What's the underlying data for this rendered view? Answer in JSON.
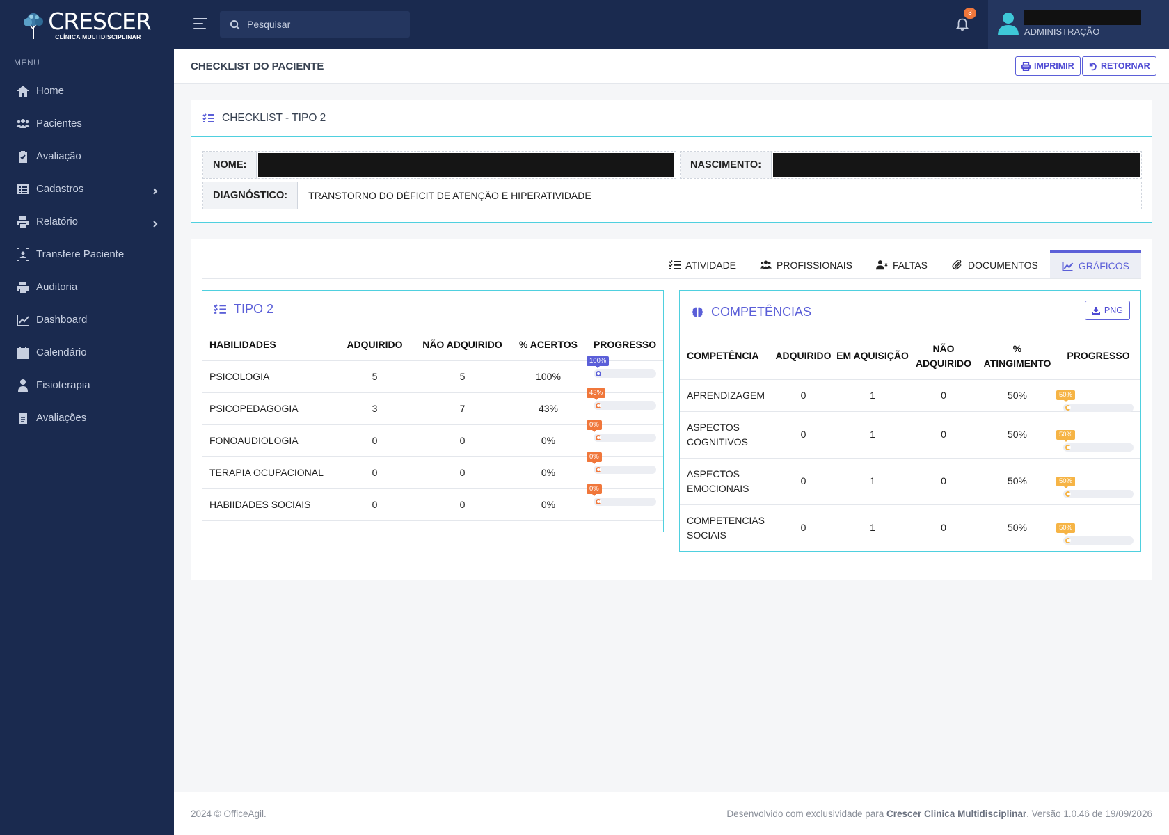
{
  "brand": {
    "name": "CRESCER",
    "subtitle": "CLÍNICA MULTIDISCIPLINAR"
  },
  "sidebar": {
    "menu_title": "MENU",
    "items": [
      {
        "label": "Home"
      },
      {
        "label": "Pacientes"
      },
      {
        "label": "Avaliação"
      },
      {
        "label": "Cadastros"
      },
      {
        "label": "Relatório"
      },
      {
        "label": "Transfere Paciente"
      },
      {
        "label": "Auditoria"
      },
      {
        "label": "Dashboard"
      },
      {
        "label": "Calendário"
      },
      {
        "label": "Fisioterapia"
      },
      {
        "label": "Avaliações"
      }
    ]
  },
  "topbar": {
    "search_placeholder": "Pesquisar",
    "notifications_count": "3",
    "user_role": "ADMINISTRAÇÃO"
  },
  "page": {
    "title": "CHECKLIST DO PACIENTE",
    "print_label": "IMPRIMIR",
    "return_label": "RETORNAR"
  },
  "checklist": {
    "title": "CHECKLIST - TIPO 2",
    "name_label": "NOME:",
    "birth_label": "NASCIMENTO:",
    "diagnosis_label": "DIAGNÓSTICO:",
    "diagnosis_value": "TRANSTORNO DO DÉFICIT DE ATENÇÃO E HIPERATIVIDADE"
  },
  "tabs": [
    {
      "label": "ATIVIDADE"
    },
    {
      "label": "PROFISSIONAIS"
    },
    {
      "label": "FALTAS"
    },
    {
      "label": "DOCUMENTOS"
    },
    {
      "label": "GRÁFICOS"
    }
  ],
  "tipo2": {
    "title": "TIPO 2",
    "headers": [
      "HABILIDADES",
      "ADQUIRIDO",
      "NÃO ADQUIRIDO",
      "% ACERTOS",
      "PROGRESSO"
    ],
    "rows": [
      {
        "skill": "PSICOLOGIA",
        "acquired": "5",
        "not_acquired": "5",
        "pct": "100%",
        "progress_label": "100%",
        "progress": 1.0,
        "color": "#5b5fd8"
      },
      {
        "skill": "PSICOPEDAGOGIA",
        "acquired": "3",
        "not_acquired": "7",
        "pct": "43%",
        "progress_label": "43%",
        "progress": 0.43,
        "color": "#f0773b"
      },
      {
        "skill": "FONOAUDIOLOGIA",
        "acquired": "0",
        "not_acquired": "0",
        "pct": "0%",
        "progress_label": "0%",
        "progress": 0,
        "color": "#f0773b"
      },
      {
        "skill": "TERAPIA OCUPACIONAL",
        "acquired": "0",
        "not_acquired": "0",
        "pct": "0%",
        "progress_label": "0%",
        "progress": 0,
        "color": "#f0773b"
      },
      {
        "skill": "HABIIDADES SOCIAIS",
        "acquired": "0",
        "not_acquired": "0",
        "pct": "0%",
        "progress_label": "0%",
        "progress": 0,
        "color": "#f0773b"
      }
    ]
  },
  "competencias": {
    "title": "COMPETÊNCIAS",
    "png_label": "PNG",
    "headers": [
      "COMPETÊNCIA",
      "ADQUIRIDO",
      "EM AQUISIÇÃO",
      "NÃO ADQUIRIDO",
      "% ATINGIMENTO",
      "PROGRESSO"
    ],
    "rows": [
      {
        "name": "APRENDIZAGEM",
        "acquired": "0",
        "in_acq": "1",
        "not_acquired": "0",
        "pct": "50%",
        "progress_label": "50%",
        "progress": 0.5,
        "color": "#f6b445"
      },
      {
        "name": "ASPECTOS COGNITIVOS",
        "acquired": "0",
        "in_acq": "1",
        "not_acquired": "0",
        "pct": "50%",
        "progress_label": "50%",
        "progress": 0.5,
        "color": "#f6b445"
      },
      {
        "name": "ASPECTOS EMOCIONAIS",
        "acquired": "0",
        "in_acq": "1",
        "not_acquired": "0",
        "pct": "50%",
        "progress_label": "50%",
        "progress": 0.5,
        "color": "#f6b445"
      },
      {
        "name": "COMPETENCIAS SOCIAIS",
        "acquired": "0",
        "in_acq": "1",
        "not_acquired": "0",
        "pct": "50%",
        "progress_label": "50%",
        "progress": 0.5,
        "color": "#f6b445"
      }
    ]
  },
  "footer": {
    "left": "2024 © OfficeAgil.",
    "right_prefix": "Desenvolvido com exclusividade para",
    "right_brand": "Crescer Clinica Multidisciplinar",
    "right_suffix": ". Versão 1.0.46 de 19/09/2026"
  },
  "colors": {
    "sidebar_bg": "#1a2a4f",
    "accent": "#5b5fd8",
    "cyan_border": "#4fd0df",
    "orange": "#f0773b",
    "amber": "#f6b445"
  }
}
